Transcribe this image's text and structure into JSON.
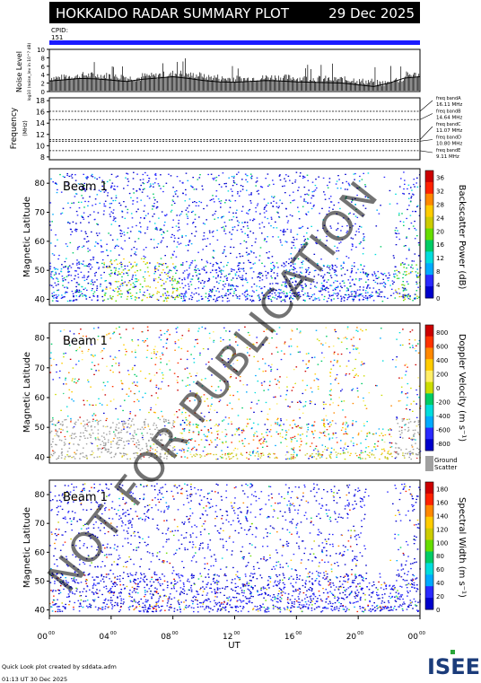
{
  "header": {
    "title": "HOKKAIDO RADAR SUMMARY PLOT",
    "date": "29 Dec 2025",
    "cpid_label": "CPID:",
    "cpid_value": "151"
  },
  "footer": {
    "line1": "Quick Look plot created by sddata.adm",
    "line2": "01:13 UT 30 Dec 2025",
    "logo_text": "ISEE"
  },
  "watermark": "NOT FOR PUBLICATION",
  "colors": {
    "cpid_bar": "#1a1aff",
    "ground_scatter": "#a0a0a0",
    "noise_trace": "#000000"
  },
  "chart_data": [
    {
      "type": "line",
      "name": "noise",
      "ylabel": "Noise Level",
      "ylabel_sub": "log10 (noise_lev in 10^? dB)",
      "yticks": [
        "0",
        "2",
        "4",
        "6",
        "8",
        "10"
      ],
      "ylim": [
        0,
        10
      ],
      "x": [
        0,
        1,
        2,
        3,
        4,
        5,
        6,
        7,
        8,
        9,
        10,
        11,
        12,
        13,
        14,
        15,
        16,
        17,
        18,
        19,
        20,
        21,
        22,
        23,
        24
      ],
      "values": [
        2.5,
        2.8,
        3.1,
        3.0,
        2.7,
        2.4,
        2.9,
        3.2,
        3.5,
        3.1,
        2.6,
        2.3,
        2.2,
        2.4,
        2.6,
        2.5,
        2.3,
        2.2,
        2.1,
        2.0,
        1.6,
        1.2,
        2.0,
        3.2,
        3.5
      ]
    },
    {
      "type": "line",
      "name": "frequency",
      "ylabel": "Frequency",
      "ylabel_unit": "(MHz)",
      "yticks": [
        "8",
        "10",
        "12",
        "14",
        "16",
        "18"
      ],
      "ylim": [
        7.5,
        18.5
      ],
      "bands": [
        {
          "label": "freq bandA",
          "value": "16.11 MHz",
          "freq": 16.11
        },
        {
          "label": "freq bandB",
          "value": "14.64 MHz",
          "freq": 14.64
        },
        {
          "label": "freq bandC",
          "value": "11.07 MHz",
          "freq": 11.07
        },
        {
          "label": "freq bandD",
          "value": "10.80 MHz",
          "freq": 10.8
        },
        {
          "label": "freq bandE",
          "value": "9.11 MHz",
          "freq": 9.11
        }
      ]
    },
    {
      "type": "heatmap",
      "name": "power",
      "beam_label": "Beam 1",
      "ylabel": "Magnetic Latitude",
      "yticks": [
        "40",
        "50",
        "60",
        "70",
        "80"
      ],
      "ylim": [
        38,
        85
      ],
      "colorbar_label": "Backscatter Power (dB)",
      "colorbar_ticks": [
        "0",
        "4",
        "8",
        "12",
        "16",
        "20",
        "24",
        "28",
        "32",
        "36"
      ],
      "colorbar_range": [
        0,
        38
      ]
    },
    {
      "type": "heatmap",
      "name": "velocity",
      "beam_label": "Beam 1",
      "ylabel": "Magnetic Latitude",
      "yticks": [
        "40",
        "50",
        "60",
        "70",
        "80"
      ],
      "ylim": [
        38,
        85
      ],
      "colorbar_label": "Doppler Velocity (m s⁻¹)",
      "colorbar_ticks": [
        "800",
        "600",
        "400",
        "200",
        "0",
        "-200",
        "-400",
        "-600",
        "-800"
      ],
      "colorbar_range": [
        -900,
        900
      ],
      "gs_label_1": "Ground",
      "gs_label_2": "Scatter"
    },
    {
      "type": "heatmap",
      "name": "width",
      "beam_label": "Beam 1",
      "ylabel": "Magnetic Latitude",
      "yticks": [
        "40",
        "50",
        "60",
        "70",
        "80"
      ],
      "ylim": [
        38,
        85
      ],
      "colorbar_label": "Spectral Width (m s⁻¹)",
      "colorbar_ticks": [
        "0",
        "20",
        "40",
        "60",
        "80",
        "100",
        "120",
        "140",
        "160",
        "180"
      ],
      "colorbar_range": [
        0,
        190
      ]
    }
  ],
  "xaxis": {
    "label": "UT",
    "ticks": [
      {
        "h": "00",
        "m": "00"
      },
      {
        "h": "04",
        "m": "00"
      },
      {
        "h": "08",
        "m": "00"
      },
      {
        "h": "12",
        "m": "00"
      },
      {
        "h": "16",
        "m": "00"
      },
      {
        "h": "20",
        "m": "00"
      },
      {
        "h": "00",
        "m": "00"
      }
    ],
    "range_hours": [
      0,
      24
    ]
  }
}
